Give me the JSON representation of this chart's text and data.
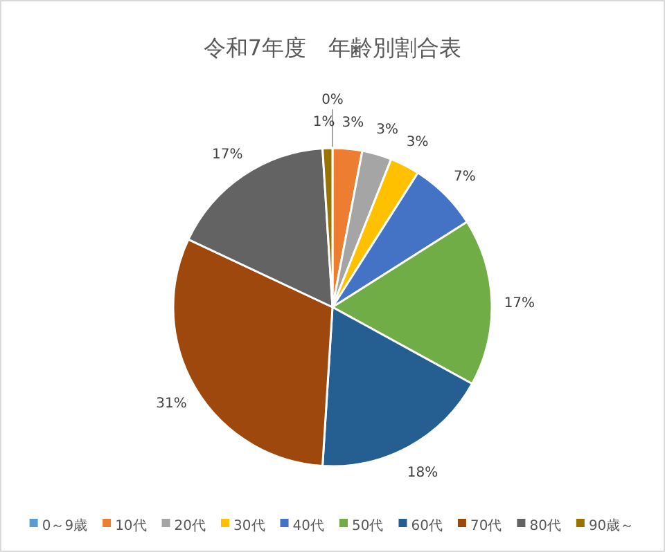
{
  "chart_data": {
    "type": "pie",
    "title": "令和7年度　年齢別割合表",
    "categories": [
      "0～9歳",
      "10代",
      "20代",
      "30代",
      "40代",
      "50代",
      "60代",
      "70代",
      "80代",
      "90歳～"
    ],
    "values": [
      0,
      3,
      3,
      3,
      7,
      17,
      18,
      31,
      17,
      1
    ],
    "value_labels": [
      "0%",
      "3%",
      "3%",
      "3%",
      "7%",
      "17%",
      "18%",
      "31%",
      "17%",
      "1%"
    ],
    "colors": [
      "#5b9bd5",
      "#ed7d31",
      "#a5a5a5",
      "#ffc000",
      "#4472c4",
      "#70ad47",
      "#255e91",
      "#9e480e",
      "#636363",
      "#997300"
    ],
    "legend": "bottom"
  }
}
